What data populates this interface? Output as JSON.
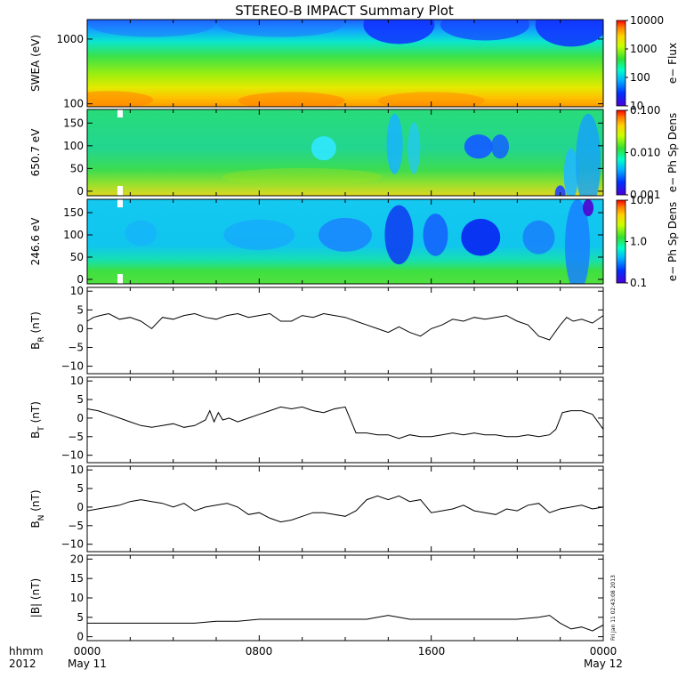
{
  "title": "STEREO-B IMPACT Summary Plot",
  "x_axis": {
    "row1_labels": [
      "hhmm",
      "0000",
      "0800",
      "1600",
      "0000"
    ],
    "row2_labels": [
      "2012",
      "May 11",
      "May 12"
    ]
  },
  "stamp": "Fri Jan 11 02:43:08 2013",
  "chart_data": [
    {
      "type": "heatmap",
      "name": "swea",
      "ylabel": "SWEA (eV)",
      "ylog": true,
      "ylim": [
        90,
        2000
      ],
      "yticks": [
        {
          "v": 100,
          "label": "100"
        },
        {
          "v": 1000,
          "label": "1000"
        }
      ],
      "colorbar": {
        "label": "e− Flux",
        "log": true,
        "range": [
          10,
          10000
        ],
        "ticks": [
          {
            "v": 10,
            "label": "10"
          },
          {
            "v": 100,
            "label": "100"
          },
          {
            "v": 1000,
            "label": "1000"
          },
          {
            "v": 10000,
            "label": "10000"
          }
        ]
      }
    },
    {
      "type": "heatmap",
      "name": "pad650",
      "ylabel": "650.7 eV",
      "ylim": [
        -10,
        180
      ],
      "yticks": [
        {
          "v": 0,
          "label": "0"
        },
        {
          "v": 50,
          "label": "50"
        },
        {
          "v": 100,
          "label": "100"
        },
        {
          "v": 150,
          "label": "150"
        }
      ],
      "colorbar": {
        "label": "e− Ph Sp Dens",
        "log": true,
        "range": [
          0.001,
          0.1
        ],
        "ticks": [
          {
            "v": 0.001,
            "label": "0.001"
          },
          {
            "v": 0.01,
            "label": "0.010"
          },
          {
            "v": 0.1,
            "label": "0.100"
          }
        ]
      }
    },
    {
      "type": "heatmap",
      "name": "pad246",
      "ylabel": "246.6 eV",
      "ylim": [
        -10,
        180
      ],
      "yticks": [
        {
          "v": 0,
          "label": "0"
        },
        {
          "v": 50,
          "label": "50"
        },
        {
          "v": 100,
          "label": "100"
        },
        {
          "v": 150,
          "label": "150"
        }
      ],
      "colorbar": {
        "label": "e− Ph Sp Dens",
        "log": true,
        "range": [
          0.1,
          10
        ],
        "ticks": [
          {
            "v": 0.1,
            "label": "0.1"
          },
          {
            "v": 1,
            "label": "1.0"
          },
          {
            "v": 10,
            "label": "10.0"
          }
        ]
      }
    },
    {
      "type": "line",
      "name": "br",
      "ylabel": "B_R (nT)",
      "ylim": [
        -12,
        11
      ],
      "yticks": [
        {
          "v": -10,
          "label": "−10"
        },
        {
          "v": -5,
          "label": "−5"
        },
        {
          "v": 0,
          "label": "0"
        },
        {
          "v": 5,
          "label": "5"
        },
        {
          "v": 10,
          "label": "10"
        }
      ],
      "x_hours": [
        0,
        0.3,
        0.6,
        1,
        1.5,
        2,
        2.5,
        3,
        3.5,
        4,
        4.5,
        5,
        5.5,
        6,
        6.5,
        7,
        7.5,
        8,
        8.5,
        9,
        9.5,
        10,
        10.5,
        11,
        11.5,
        12,
        12.5,
        13,
        13.5,
        14,
        14.5,
        15,
        15.5,
        16,
        16.5,
        17,
        17.5,
        18,
        18.5,
        19,
        19.5,
        20,
        20.5,
        21,
        21.5,
        22,
        22.3,
        22.6,
        23,
        23.5,
        24
      ],
      "y": [
        2,
        3,
        3.5,
        4,
        2.5,
        3,
        2,
        0,
        3,
        2.5,
        3.5,
        4,
        3,
        2.5,
        3.5,
        4,
        3,
        3.5,
        4,
        2,
        2,
        3.5,
        3,
        4,
        3.5,
        3,
        2,
        1,
        0,
        -1,
        0.5,
        -1,
        -2,
        0,
        1,
        2.5,
        2,
        3,
        2.5,
        3,
        3.5,
        2,
        1,
        -2,
        -3,
        1,
        3,
        2,
        2.5,
        1.5,
        3.5
      ]
    },
    {
      "type": "line",
      "name": "bt",
      "ylabel": "B_T (nT)",
      "ylim": [
        -12,
        11
      ],
      "yticks": [
        {
          "v": -10,
          "label": "−10"
        },
        {
          "v": -5,
          "label": "−5"
        },
        {
          "v": 0,
          "label": "0"
        },
        {
          "v": 5,
          "label": "5"
        },
        {
          "v": 10,
          "label": "10"
        }
      ],
      "x_hours": [
        0,
        0.5,
        1,
        1.5,
        2,
        2.5,
        3,
        3.5,
        4,
        4.5,
        5,
        5.5,
        5.7,
        5.9,
        6.1,
        6.3,
        6.6,
        7,
        7.5,
        8,
        8.5,
        9,
        9.5,
        10,
        10.5,
        11,
        11.5,
        12,
        12.5,
        13,
        13.5,
        14,
        14.5,
        15,
        15.5,
        16,
        16.5,
        17,
        17.5,
        18,
        18.5,
        19,
        19.5,
        20,
        20.5,
        21,
        21.5,
        21.8,
        22.1,
        22.5,
        23,
        23.5,
        24
      ],
      "y": [
        2.5,
        2,
        1,
        0,
        -1,
        -2,
        -2.5,
        -2,
        -1.5,
        -2.5,
        -2,
        -0.5,
        2,
        -1,
        1.5,
        -0.5,
        0,
        -1,
        0,
        1,
        2,
        3,
        2.5,
        3,
        2,
        1.5,
        2.5,
        3,
        -4,
        -4,
        -4.5,
        -4.5,
        -5.5,
        -4.5,
        -5,
        -5,
        -4.5,
        -4,
        -4.5,
        -4,
        -4.5,
        -4.5,
        -5,
        -5,
        -4.5,
        -5,
        -4.5,
        -3,
        1.5,
        2,
        2,
        1,
        -3
      ]
    },
    {
      "type": "line",
      "name": "bn",
      "ylabel": "B_N (nT)",
      "ylim": [
        -12,
        11
      ],
      "yticks": [
        {
          "v": -10,
          "label": "−10"
        },
        {
          "v": -5,
          "label": "−5"
        },
        {
          "v": 0,
          "label": "0"
        },
        {
          "v": 5,
          "label": "5"
        },
        {
          "v": 10,
          "label": "10"
        }
      ],
      "x_hours": [
        0,
        0.5,
        1,
        1.5,
        2,
        2.5,
        3,
        3.5,
        4,
        4.5,
        5,
        5.5,
        6,
        6.5,
        7,
        7.5,
        8,
        8.5,
        9,
        9.5,
        10,
        10.5,
        11,
        11.5,
        12,
        12.5,
        13,
        13.5,
        14,
        14.5,
        15,
        15.5,
        16,
        16.5,
        17,
        17.5,
        18,
        18.5,
        19,
        19.5,
        20,
        20.5,
        21,
        21.5,
        22,
        22.5,
        23,
        23.5,
        24
      ],
      "y": [
        -1,
        -0.5,
        0,
        0.5,
        1.5,
        2,
        1.5,
        1,
        0,
        1,
        -1,
        0,
        0.5,
        1,
        0,
        -2,
        -1.5,
        -3,
        -4,
        -3.5,
        -2.5,
        -1.5,
        -1.5,
        -2,
        -2.5,
        -1,
        2,
        3,
        2,
        3,
        1.5,
        2,
        -1.5,
        -1,
        -0.5,
        0.5,
        -1,
        -1.5,
        -2,
        -0.5,
        -1,
        0.5,
        1,
        -1.5,
        -0.5,
        0,
        0.5,
        -0.5,
        0
      ]
    },
    {
      "type": "line",
      "name": "bmag",
      "ylabel": "|B| (nT)",
      "ylim": [
        -1,
        21
      ],
      "yticks": [
        {
          "v": 0,
          "label": "0"
        },
        {
          "v": 5,
          "label": "5"
        },
        {
          "v": 10,
          "label": "10"
        },
        {
          "v": 15,
          "label": "15"
        },
        {
          "v": 20,
          "label": "20"
        }
      ],
      "x_hours": [
        0,
        1,
        2,
        3,
        4,
        5,
        6,
        7,
        8,
        9,
        10,
        11,
        12,
        13,
        13.5,
        14,
        14.5,
        15,
        16,
        17,
        18,
        19,
        20,
        21,
        21.5,
        22,
        22.5,
        23,
        23.5,
        24
      ],
      "y": [
        3.5,
        3.5,
        3.5,
        3.5,
        3.5,
        3.5,
        4,
        4,
        4.5,
        4.5,
        4.5,
        4.5,
        4.5,
        4.5,
        5,
        5.5,
        5,
        4.5,
        4.5,
        4.5,
        4.5,
        4.5,
        4.5,
        5,
        5.5,
        3.5,
        2,
        2.5,
        1.5,
        3
      ]
    }
  ]
}
